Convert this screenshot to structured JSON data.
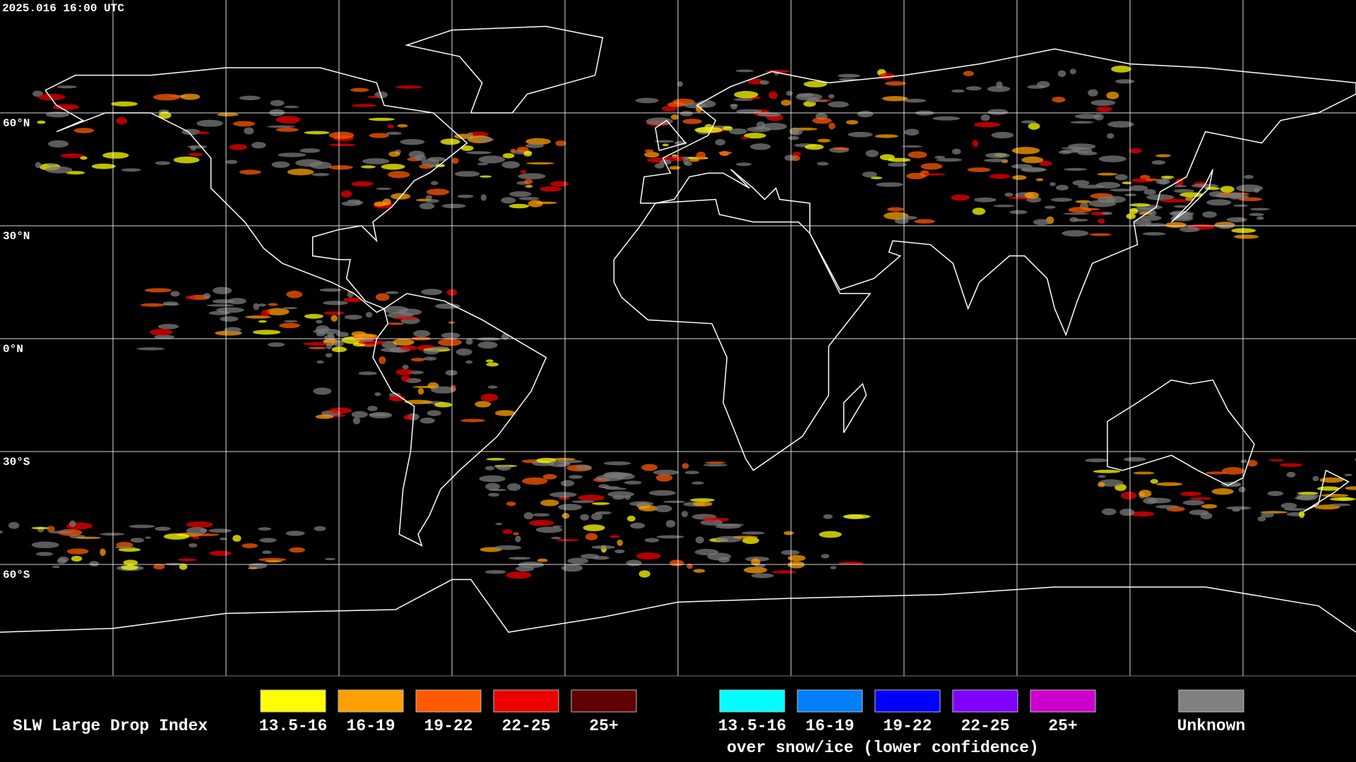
{
  "header": {
    "timestamp": "2025.016 16:00 UTC"
  },
  "map": {
    "latitude_labels": [
      "60°N",
      "30°N",
      "0°N",
      "30°S",
      "60°S"
    ]
  },
  "legend": {
    "title": "SLW Large Drop Index",
    "items": [
      {
        "label": "13.5-16",
        "color": "#ffff00"
      },
      {
        "label": "16-19",
        "color": "#ffa000"
      },
      {
        "label": "19-22",
        "color": "#ff5a00"
      },
      {
        "label": "22-25",
        "color": "#ee0000"
      },
      {
        "label": "25+",
        "color": "#600000"
      }
    ],
    "snow_items": [
      {
        "label": "13.5-16",
        "color": "#00ffff"
      },
      {
        "label": "16-19",
        "color": "#0080ff"
      },
      {
        "label": "19-22",
        "color": "#0000ff"
      },
      {
        "label": "22-25",
        "color": "#8000ff"
      },
      {
        "label": "25+",
        "color": "#cc00cc"
      }
    ],
    "snow_caption": "over snow/ice (lower confidence)",
    "unknown": {
      "label": "Unknown",
      "color": "#808080"
    }
  }
}
